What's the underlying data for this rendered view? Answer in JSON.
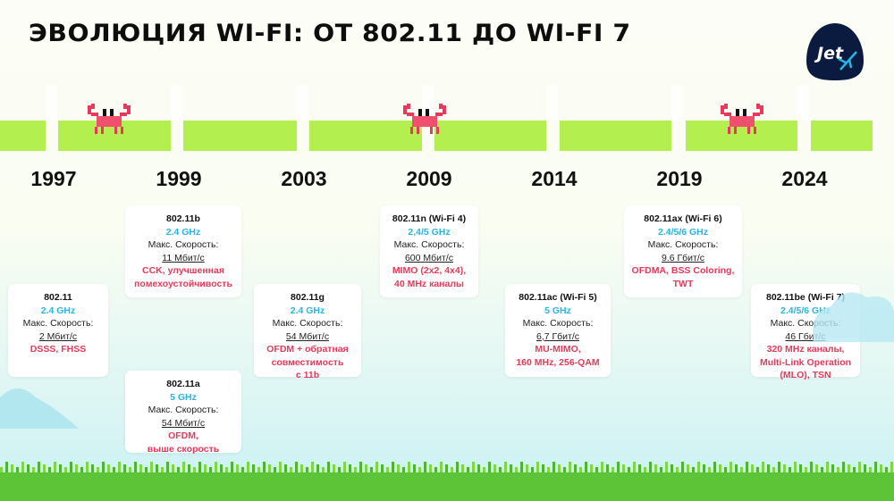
{
  "title": "ЭВОЛЮЦИЯ WI-FI: ОТ 802.11 ДО WI-FI 7",
  "logo": {
    "text": "Jet",
    "icon": "jet-logo-icon"
  },
  "years": [
    "1997",
    "1999",
    "2003",
    "2009",
    "2014",
    "2019",
    "2024"
  ],
  "speed_label": "Макс. Скорость:",
  "cards": [
    {
      "name": "802.11",
      "freq": "2.4 GHz",
      "speed": "2 Мбит/с",
      "tech": [
        "DSSS, FHSS"
      ]
    },
    {
      "name": "802.11b",
      "freq": "2.4 GHz",
      "speed": "11 Мбит/с",
      "tech": [
        "CCK, улучшенная",
        "помехоустойчивость"
      ]
    },
    {
      "name": "802.11a",
      "freq": "5 GHz",
      "speed": "54 Мбит/с",
      "tech": [
        "OFDM,",
        "выше скорость"
      ]
    },
    {
      "name": "802.11g",
      "freq": "2.4 GHz",
      "speed": "54 Мбит/с",
      "tech": [
        "OFDM + обратная",
        "совместимость",
        "с 11b"
      ]
    },
    {
      "name": "802.11n (Wi-Fi 4)",
      "freq": "2,4/5 GHz",
      "speed": "600 Мбит/с",
      "tech": [
        "MIMO (2x2, 4x4),",
        "40 MHz каналы"
      ]
    },
    {
      "name": "802.11ac (Wi-Fi 5)",
      "freq": "5 GHz",
      "speed": "6,7 Гбит/с",
      "tech": [
        "MU-MIMO,",
        "160 MHz, 256-QAM"
      ]
    },
    {
      "name": "802.11ax (Wi-Fi 6)",
      "freq": "2.4/5/6 GHz",
      "speed": "9.6 Гбит/с",
      "tech": [
        "OFDMA, BSS Coloring,",
        "TWT"
      ]
    },
    {
      "name": "802.11be (Wi-Fi 7)",
      "freq": "2.4/5/6 GHz",
      "speed": "46 Гбит/с",
      "tech": [
        "320 MHz каналы,",
        "Multi-Link Operation",
        "(MLO), TSN"
      ]
    }
  ],
  "colors": {
    "bar": "#b3ef4f",
    "freq": "#27b6e4",
    "tech": "#e8385b",
    "logo_bg": "#0b1b3f"
  }
}
